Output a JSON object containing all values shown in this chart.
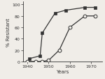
{
  "hospital_x": [
    1941,
    1946,
    1947,
    1953,
    1958,
    1967,
    1972
  ],
  "hospital_y": [
    5,
    10,
    50,
    85,
    90,
    95,
    95
  ],
  "community_x": [
    1940,
    1944,
    1947,
    1950,
    1955,
    1960,
    1967,
    1972
  ],
  "community_y": [
    0,
    0,
    0,
    2,
    20,
    60,
    80,
    80
  ],
  "xlim": [
    1938,
    1975
  ],
  "ylim": [
    0,
    105
  ],
  "xticks": [
    1940,
    1950,
    1960,
    1970
  ],
  "yticks": [
    0,
    20,
    40,
    60,
    80,
    100
  ],
  "xlabel": "Years",
  "ylabel": "% Resistant",
  "line_color": "#333333",
  "background_color": "#f0ede8",
  "title": ""
}
